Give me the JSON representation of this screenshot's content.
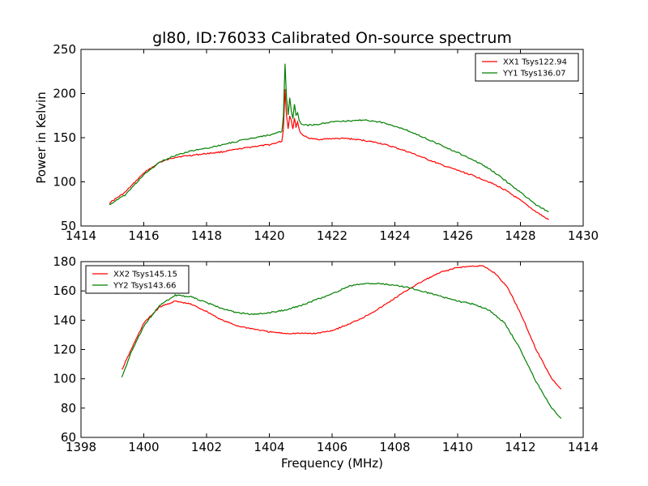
{
  "title": "gl80, ID:76033 Calibrated On-source spectrum",
  "colors": {
    "red": "#ff0000",
    "green": "#007f00"
  },
  "chart_data": [
    {
      "type": "line",
      "xlabel": "",
      "ylabel": "Power in Kelvin",
      "xlim": [
        1414,
        1430
      ],
      "ylim": [
        50,
        250
      ],
      "xticks": [
        "1414",
        "1416",
        "1418",
        "1420",
        "1422",
        "1424",
        "1426",
        "1428",
        "1430"
      ],
      "yticks": [
        "50",
        "100",
        "150",
        "200",
        "250"
      ],
      "legend_position": "top-right",
      "series": [
        {
          "name": "XX1 Tsys122.94",
          "color": "#ff0000",
          "x": [
            1414.9,
            1415.4,
            1416.0,
            1416.5,
            1417.0,
            1417.5,
            1418.0,
            1418.5,
            1419.0,
            1419.5,
            1420.0,
            1420.4,
            1420.45,
            1420.5,
            1420.55,
            1420.6,
            1420.65,
            1420.7,
            1420.75,
            1420.8,
            1420.85,
            1420.9,
            1420.95,
            1421.0,
            1421.2,
            1421.5,
            1422.0,
            1422.5,
            1423.0,
            1423.5,
            1424.0,
            1424.5,
            1425.0,
            1425.5,
            1426.0,
            1426.5,
            1427.0,
            1427.5,
            1428.0,
            1428.5,
            1428.9
          ],
          "y": [
            76,
            88,
            110,
            122,
            128,
            130,
            132,
            134,
            137,
            140,
            142,
            146,
            160,
            205,
            175,
            160,
            175,
            170,
            160,
            172,
            162,
            168,
            160,
            155,
            150,
            148,
            149,
            149,
            147,
            144,
            139,
            133,
            126,
            119,
            113,
            107,
            100,
            91,
            79,
            66,
            57
          ]
        },
        {
          "name": "YY1 Tsys136.07",
          "color": "#007f00",
          "x": [
            1414.9,
            1415.4,
            1416.0,
            1416.5,
            1417.0,
            1417.5,
            1418.0,
            1418.5,
            1419.0,
            1419.5,
            1420.0,
            1420.4,
            1420.45,
            1420.5,
            1420.55,
            1420.6,
            1420.65,
            1420.7,
            1420.75,
            1420.8,
            1420.85,
            1420.9,
            1420.95,
            1421.0,
            1421.2,
            1421.5,
            1422.0,
            1422.5,
            1423.0,
            1423.5,
            1424.0,
            1424.5,
            1425.0,
            1425.5,
            1426.0,
            1426.5,
            1427.0,
            1427.5,
            1428.0,
            1428.5,
            1428.9
          ],
          "y": [
            74,
            85,
            108,
            122,
            130,
            135,
            138,
            142,
            146,
            150,
            153,
            157,
            175,
            234,
            195,
            175,
            195,
            180,
            172,
            188,
            175,
            178,
            170,
            166,
            164,
            165,
            168,
            169,
            170,
            168,
            163,
            157,
            149,
            141,
            133,
            125,
            115,
            102,
            88,
            74,
            66
          ]
        }
      ]
    },
    {
      "type": "line",
      "xlabel": "Frequency (MHz)",
      "ylabel": "",
      "xlim": [
        1398,
        1414
      ],
      "ylim": [
        60,
        180
      ],
      "xticks": [
        "1398",
        "1400",
        "1402",
        "1404",
        "1406",
        "1408",
        "1410",
        "1412",
        "1414"
      ],
      "yticks": [
        "60",
        "80",
        "100",
        "120",
        "140",
        "160",
        "180"
      ],
      "legend_position": "top-left",
      "series": [
        {
          "name": "XX2 Tsys145.15",
          "color": "#ff0000",
          "x": [
            1399.3,
            1399.6,
            1400.0,
            1400.5,
            1401.0,
            1401.5,
            1402.0,
            1402.5,
            1403.0,
            1403.5,
            1404.0,
            1404.5,
            1405.0,
            1405.5,
            1406.0,
            1406.5,
            1407.0,
            1407.5,
            1408.0,
            1408.5,
            1409.0,
            1409.5,
            1410.0,
            1410.5,
            1410.8,
            1411.2,
            1411.6,
            1412.0,
            1412.5,
            1413.0,
            1413.3
          ],
          "y": [
            106,
            120,
            138,
            149,
            153,
            151,
            146,
            140,
            136,
            134,
            132,
            131,
            131,
            131,
            133,
            137,
            142,
            148,
            155,
            162,
            168,
            173,
            176,
            177,
            177,
            172,
            162,
            145,
            120,
            100,
            93
          ]
        },
        {
          "name": "YY2 Tsys143.66",
          "color": "#007f00",
          "x": [
            1399.3,
            1399.6,
            1400.0,
            1400.5,
            1401.0,
            1401.5,
            1402.0,
            1402.5,
            1403.0,
            1403.5,
            1404.0,
            1404.5,
            1405.0,
            1405.5,
            1406.0,
            1406.5,
            1407.0,
            1407.5,
            1408.0,
            1408.5,
            1409.0,
            1409.5,
            1410.0,
            1410.5,
            1411.0,
            1411.5,
            1412.0,
            1412.5,
            1413.0,
            1413.3
          ],
          "y": [
            101,
            118,
            136,
            150,
            157,
            156,
            152,
            148,
            145,
            144,
            145,
            147,
            150,
            154,
            158,
            163,
            165,
            165,
            164,
            162,
            159,
            156,
            153,
            151,
            147,
            138,
            120,
            98,
            80,
            73
          ]
        }
      ]
    }
  ]
}
